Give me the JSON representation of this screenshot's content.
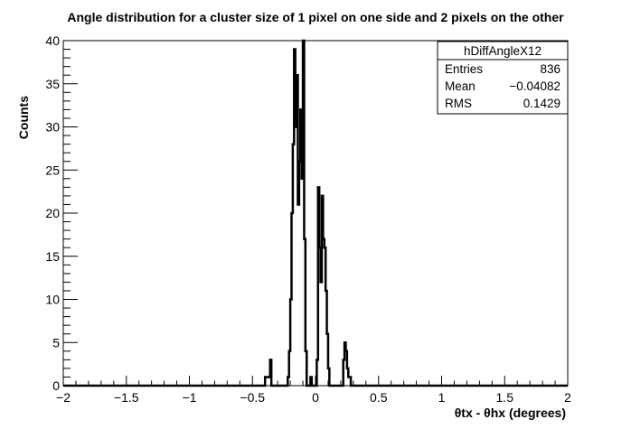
{
  "chart_data": {
    "type": "bar",
    "title": "Angle distribution for a cluster size of 1 pixel on one side and 2 pixels on the other",
    "xlabel": "θtx - θhx (degrees)",
    "ylabel": "Counts",
    "xlim": [
      -2,
      2
    ],
    "ylim": [
      0,
      40
    ],
    "grid": false,
    "x_ticks": [
      "−2",
      "−1.5",
      "−1",
      "−0.5",
      "0",
      "0.5",
      "1",
      "1.5",
      "2"
    ],
    "y_ticks": [
      "0",
      "5",
      "10",
      "15",
      "20",
      "25",
      "30",
      "35",
      "40"
    ],
    "bin_width": 0.01,
    "x": [
      -0.4,
      -0.39,
      -0.38,
      -0.37,
      -0.36,
      -0.35,
      -0.34,
      -0.33,
      -0.32,
      -0.31,
      -0.3,
      -0.29,
      -0.28,
      -0.27,
      -0.26,
      -0.25,
      -0.24,
      -0.23,
      -0.22,
      -0.21,
      -0.2,
      -0.19,
      -0.18,
      -0.17,
      -0.16,
      -0.15,
      -0.14,
      -0.13,
      -0.12,
      -0.11,
      -0.1,
      -0.09,
      -0.08,
      -0.07,
      -0.06,
      -0.05,
      -0.04,
      -0.03,
      -0.02,
      -0.01,
      0.0,
      0.01,
      0.02,
      0.03,
      0.04,
      0.05,
      0.06,
      0.07,
      0.08,
      0.09,
      0.1,
      0.11,
      0.12,
      0.13,
      0.14,
      0.15,
      0.16,
      0.17,
      0.18,
      0.19,
      0.2,
      0.21,
      0.22,
      0.23,
      0.24,
      0.25,
      0.26,
      0.27,
      0.28,
      0.29,
      0.3,
      0.31,
      0.32,
      0.33,
      0.34,
      0.35,
      0.36,
      0.37,
      0.38,
      0.39
    ],
    "values": [
      1,
      1,
      1,
      1,
      3,
      0,
      0,
      0,
      0,
      0,
      0,
      0,
      0,
      0,
      0,
      0,
      0,
      0,
      1,
      4,
      10,
      20,
      28,
      39,
      30,
      36,
      21,
      26,
      32,
      24,
      40,
      17,
      4,
      0,
      0,
      0,
      1,
      0,
      0,
      0,
      0,
      3,
      23,
      16,
      12,
      22,
      17,
      16,
      11,
      6,
      2,
      0,
      0,
      0,
      0,
      0,
      0,
      0,
      0,
      0,
      0,
      0,
      3,
      5,
      4,
      2,
      1,
      1,
      0,
      0,
      0,
      0,
      0,
      0,
      0,
      0,
      0,
      0,
      0,
      0
    ],
    "stats": {
      "name": "hDiffAngleX12",
      "rows": [
        {
          "label": "Entries",
          "value": "836"
        },
        {
          "label": "Mean",
          "value": "−0.04082"
        },
        {
          "label": "RMS",
          "value": "0.1429"
        }
      ]
    }
  }
}
